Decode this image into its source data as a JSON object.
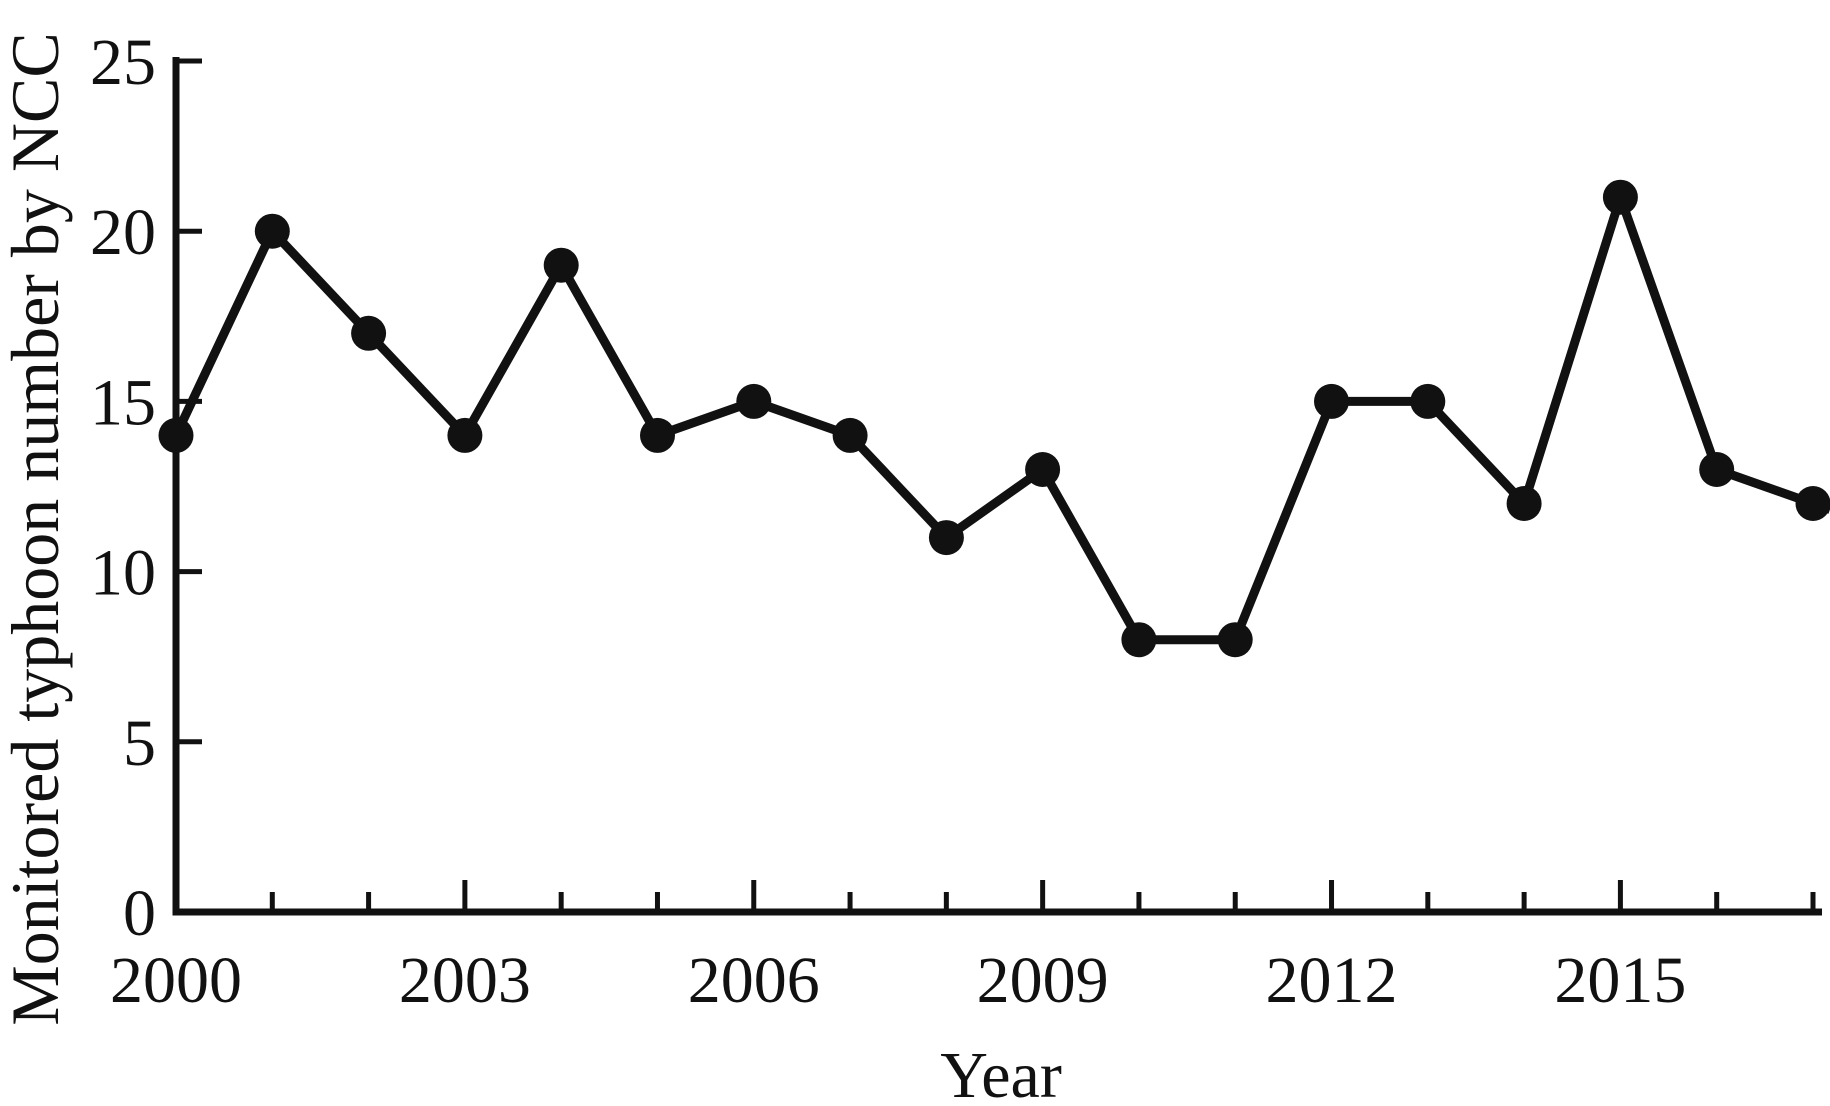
{
  "chart_data": {
    "type": "line",
    "title": "",
    "xlabel": "Year",
    "ylabel": "Monitored typhoon number by NCC",
    "x": [
      2000,
      2001,
      2002,
      2003,
      2004,
      2005,
      2006,
      2007,
      2008,
      2009,
      2010,
      2011,
      2012,
      2013,
      2014,
      2015,
      2016,
      2017
    ],
    "values": [
      14,
      20,
      17,
      14,
      19,
      14,
      15,
      14,
      11,
      13,
      8,
      8,
      15,
      15,
      12,
      21,
      13,
      12
    ],
    "series_name": "Monitored typhoon number by NCC",
    "ylim": [
      0,
      25
    ],
    "yticks": [
      0,
      5,
      10,
      15,
      20,
      25
    ],
    "xticks_labeled": [
      2000,
      2003,
      2006,
      2009,
      2012,
      2015
    ],
    "xticks_minor_every_year": true,
    "grid": false,
    "legend_position": "none",
    "marker": "filled-circle",
    "line_color": "#111111",
    "axis_color": "#111111",
    "background_color": "#ffffff"
  }
}
